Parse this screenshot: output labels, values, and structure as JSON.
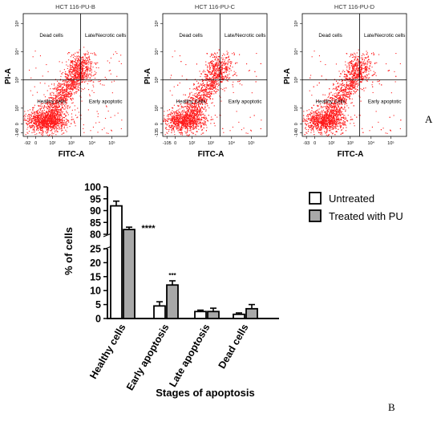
{
  "panel_a_label": "A",
  "panel_b_label": "B",
  "colors": {
    "dots": "#ff1a1a",
    "treated_fill": "#a8a8a8",
    "untreated_fill": "#ffffff"
  },
  "flow_panels": [
    {
      "title": "HCT 116-PU-B",
      "x_label": "FITC-A",
      "y_label": "PI-A",
      "x_ticks": [
        "-92",
        "0",
        "10²",
        "10³",
        "10⁴",
        "10⁵"
      ],
      "y_ticks": [
        "-149",
        "0",
        "10²",
        "10³",
        "10⁴",
        "10⁵"
      ],
      "quadrants": [
        "Dead cells",
        "Late/Necrotic cells",
        "Healthy cells",
        "Early apoptotic"
      ]
    },
    {
      "title": "HCT 116-PU-C",
      "x_label": "FITC-A",
      "y_label": "PI-A",
      "x_ticks": [
        "-105",
        "0",
        "10²",
        "10³",
        "10⁴",
        "10⁵"
      ],
      "y_ticks": [
        "-135",
        "0",
        "10²",
        "10³",
        "10⁴",
        "10⁵"
      ],
      "quadrants": [
        "Dead cells",
        "Late/Necrotic cells",
        "Healthy Cells",
        "Early apoptotic"
      ]
    },
    {
      "title": "HCT 116-PU-D",
      "x_label": "FITC-A",
      "y_label": "PI-A",
      "x_ticks": [
        "-93",
        "0",
        "10²",
        "10³",
        "10⁴",
        "10⁵"
      ],
      "y_ticks": [
        "-140",
        "0",
        "10²",
        "10³",
        "10⁴",
        "10⁵"
      ],
      "quadrants": [
        "Dead cells",
        "Late/Necrotic cells",
        "Healthy Cells",
        "Early apoptotic"
      ]
    }
  ],
  "chart_data": {
    "type": "bar",
    "xlabel": "Stages of apoptosis",
    "ylabel": "% of cells",
    "categories": [
      "Healthy cells",
      "Early apoptosis",
      "Late apoptosis",
      "Dead cells"
    ],
    "series": [
      {
        "name": "Untreated",
        "values": [
          92,
          4.5,
          2.5,
          1.5
        ],
        "errors": [
          2,
          1.5,
          0.5,
          0.5
        ]
      },
      {
        "name": "Treated with PU",
        "values": [
          82,
          12,
          2.5,
          3.5
        ],
        "errors": [
          1,
          1.5,
          1.2,
          1.5
        ]
      }
    ],
    "significance": [
      "****",
      "***",
      "",
      ""
    ],
    "y_ticks_lower": [
      "0",
      "5",
      "10",
      "15",
      "20",
      "25"
    ],
    "y_ticks_upper": [
      "80",
      "85",
      "90",
      "95",
      "100"
    ],
    "ylim_lower": [
      0,
      25
    ],
    "ylim_upper": [
      80,
      100
    ],
    "legend_position": "top-right"
  }
}
